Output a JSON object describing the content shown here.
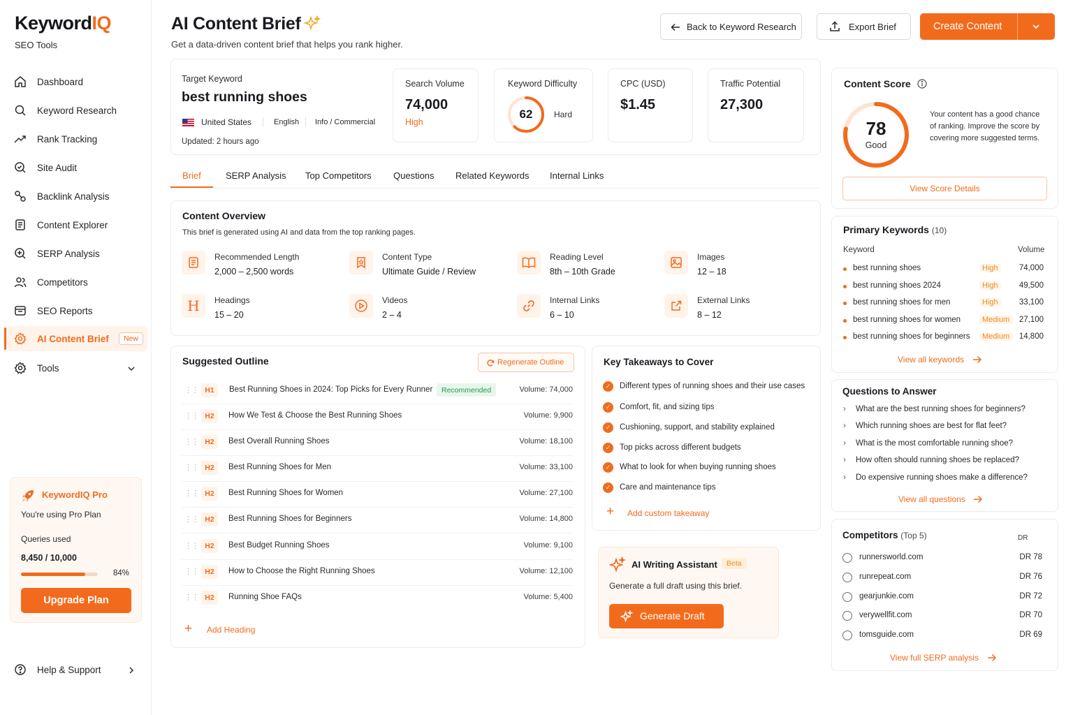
{
  "brand": {
    "name_main": "Keyword",
    "name_accent": "IQ",
    "subtitle": "SEO Tools",
    "accent": "#f26b1d"
  },
  "sidebar": {
    "items": [
      {
        "label": "Dashboard",
        "icon": "home-icon"
      },
      {
        "label": "Keyword Research",
        "icon": "search-icon"
      },
      {
        "label": "Rank Tracking",
        "icon": "trend-icon"
      },
      {
        "label": "Site Audit",
        "icon": "audit-icon"
      },
      {
        "label": "Backlink Analysis",
        "icon": "link-icon"
      },
      {
        "label": "Content Explorer",
        "icon": "document-icon"
      },
      {
        "label": "SERP Analysis",
        "icon": "serp-icon"
      },
      {
        "label": "Competitors",
        "icon": "users-icon"
      },
      {
        "label": "SEO Reports",
        "icon": "report-icon"
      },
      {
        "label": "AI Content Brief",
        "icon": "gear-icon",
        "badge": "New",
        "active": true
      },
      {
        "label": "Tools",
        "icon": "settings-icon"
      }
    ],
    "pro": {
      "title": "KeywordIQ Pro",
      "plan": "You're using Pro Plan",
      "queries_label": "Queries used",
      "queries_value": "8,450 / 10,000",
      "percent": "84%",
      "progress": 0.84,
      "upgrade": "Upgrade Plan"
    },
    "help": "Help & Support"
  },
  "header": {
    "title": "AI Content Brief",
    "subtitle": "Get a data-driven content brief that helps you rank higher.",
    "back": "Back to Keyword Research",
    "export": "Export Brief",
    "create": "Create Content"
  },
  "target": {
    "label": "Target Keyword",
    "keyword": "best running shoes",
    "country": "United States",
    "language": "English",
    "intent": "Info / Commercial",
    "updated": "Updated: 2 hours ago"
  },
  "metrics": {
    "volume": {
      "label": "Search Volume",
      "value": "74,000",
      "level": "High"
    },
    "difficulty": {
      "label": "Keyword Difficulty",
      "value": "62",
      "level": "Hard",
      "fraction": 0.62
    },
    "cpc": {
      "label": "CPC (USD)",
      "value": "$1.45"
    },
    "traffic": {
      "label": "Traffic Potential",
      "value": "27,300"
    }
  },
  "tabs": [
    "Brief",
    "SERP Analysis",
    "Top Competitors",
    "Questions",
    "Related Keywords",
    "Internal Links"
  ],
  "overview": {
    "title": "Content Overview",
    "desc": "This brief is generated using AI and data from the top ranking pages.",
    "items": [
      {
        "label": "Recommended Length",
        "value": "2,000 – 2,500 words"
      },
      {
        "label": "Content Type",
        "value": "Ultimate Guide / Review"
      },
      {
        "label": "Reading Level",
        "value": "8th – 10th Grade"
      },
      {
        "label": "Images",
        "value": "12 – 18"
      },
      {
        "label": "Headings",
        "value": "15 – 20"
      },
      {
        "label": "Videos",
        "value": "2 – 4"
      },
      {
        "label": "Internal Links",
        "value": "6 – 10"
      },
      {
        "label": "External Links",
        "value": "8 – 12"
      }
    ]
  },
  "outline": {
    "title": "Suggested Outline",
    "regenerate": "Regenerate Outline",
    "recommended": "Recommended",
    "rows": [
      {
        "tag": "H1",
        "text": "Best Running Shoes in 2024: Top Picks for Every Runner",
        "volume": "Volume:  74,000"
      },
      {
        "tag": "H2",
        "text": "How We Test & Choose the Best Running Shoes",
        "volume": "Volume:  9,900"
      },
      {
        "tag": "H2",
        "text": "Best Overall Running Shoes",
        "volume": "Volume:  18,100"
      },
      {
        "tag": "H2",
        "text": "Best Running Shoes for Men",
        "volume": "Volume:  33,100"
      },
      {
        "tag": "H2",
        "text": "Best Running Shoes for Women",
        "volume": "Volume:  27,100"
      },
      {
        "tag": "H2",
        "text": "Best Running Shoes for Beginners",
        "volume": "Volume:  14,800"
      },
      {
        "tag": "H2",
        "text": "Best Budget Running Shoes",
        "volume": "Volume:  9,100"
      },
      {
        "tag": "H2",
        "text": "How to Choose the Right Running Shoes",
        "volume": "Volume:  12,100"
      },
      {
        "tag": "H2",
        "text": "Running Shoe FAQs",
        "volume": "Volume:  5,400"
      }
    ],
    "add": "Add Heading"
  },
  "takeaways": {
    "title": "Key Takeaways to Cover",
    "items": [
      "Different types of running shoes and their use cases",
      "Comfort, fit, and sizing tips",
      "Cushioning, support, and stability explained",
      "Top picks across different budgets",
      "What to look for when buying running shoes",
      "Care and maintenance tips"
    ],
    "add": "Add custom takeaway"
  },
  "assistant": {
    "title": "AI Writing Assistant",
    "badge": "Beta",
    "desc": "Generate a full draft using this brief.",
    "button": "Generate Draft"
  },
  "score": {
    "title": "Content Score",
    "value": "78",
    "label": "Good",
    "fraction": 0.78,
    "desc": "Your content has a good chance of ranking. Improve the score by covering more suggested terms.",
    "button": "View Score Details"
  },
  "primary_keywords": {
    "title": "Primary Keywords",
    "count": "(10)",
    "col_keyword": "Keyword",
    "col_volume": "Volume",
    "rows": [
      {
        "name": "best running shoes",
        "diff": "High",
        "volume": "74,000"
      },
      {
        "name": "best running shoes 2024",
        "diff": "High",
        "volume": "49,500"
      },
      {
        "name": "best running shoes for men",
        "diff": "High",
        "volume": "33,100"
      },
      {
        "name": "best running shoes for women",
        "diff": "Medium",
        "volume": "27,100"
      },
      {
        "name": "best running shoes for beginners",
        "diff": "Medium",
        "volume": "14,800"
      }
    ],
    "view_all": "View all keywords"
  },
  "questions": {
    "title": "Questions to Answer",
    "items": [
      "What are the best running shoes for beginners?",
      "Which running shoes are best for flat feet?",
      "What is the most comfortable running shoe?",
      "How often should running shoes be replaced?",
      "Do expensive running shoes make a difference?"
    ],
    "view_all": "View all questions"
  },
  "competitors": {
    "title": "Competitors",
    "count": "(Top 5)",
    "col_dr": "DR",
    "rows": [
      {
        "name": "runnersworld.com",
        "dr": "DR  78"
      },
      {
        "name": "runrepeat.com",
        "dr": "DR  76"
      },
      {
        "name": "gearjunkie.com",
        "dr": "DR  72"
      },
      {
        "name": "verywellfit.com",
        "dr": "DR  70"
      },
      {
        "name": "tomsguide.com",
        "dr": "DR  69"
      }
    ],
    "view_all": "View full SERP analysis"
  }
}
